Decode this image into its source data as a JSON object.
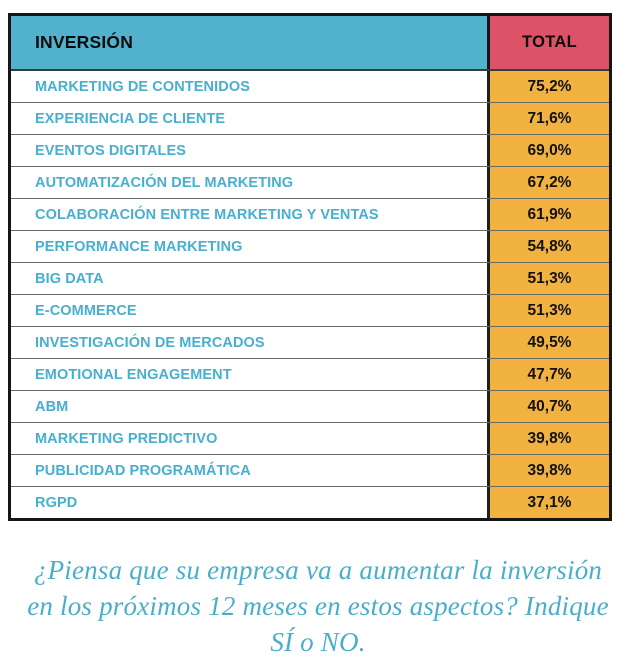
{
  "table": {
    "header": {
      "label_col": "INVERSIÓN",
      "value_col": "TOTAL"
    },
    "rows": [
      {
        "label": "MARKETING DE CONTENIDOS",
        "value": "75,2%"
      },
      {
        "label": "EXPERIENCIA DE CLIENTE",
        "value": "71,6%"
      },
      {
        "label": "EVENTOS DIGITALES",
        "value": "69,0%"
      },
      {
        "label": "AUTOMATIZACIÓN DEL MARKETING",
        "value": "67,2%"
      },
      {
        "label": "COLABORACIÓN ENTRE MARKETING Y VENTAS",
        "value": "61,9%"
      },
      {
        "label": "PERFORMANCE MARKETING",
        "value": "54,8%"
      },
      {
        "label": "BIG DATA",
        "value": "51,3%"
      },
      {
        "label": "E-COMMERCE",
        "value": "51,3%"
      },
      {
        "label": "INVESTIGACIÓN DE MERCADOS",
        "value": "49,5%"
      },
      {
        "label": "EMOTIONAL ENGAGEMENT",
        "value": "47,7%"
      },
      {
        "label": "ABM",
        "value": "40,7%"
      },
      {
        "label": "MARKETING PREDICTIVO",
        "value": "39,8%"
      },
      {
        "label": "PUBLICIDAD PROGRAMÁTICA",
        "value": "39,8%"
      },
      {
        "label": "RGPD",
        "value": "37,1%"
      }
    ]
  },
  "caption": {
    "line1": "¿Piensa que su empresa va a aumentar la inversión",
    "line2": "en los próximos 12 meses en estos aspectos? Indique",
    "line3": "SÍ o NO."
  },
  "colors": {
    "header_label_bg": "#52B2CD",
    "header_total_bg": "#DC5266",
    "value_cell_bg": "#F2B240",
    "row_label_text": "#47AFCF",
    "caption_text": "#4AAECB",
    "border": "#161616"
  },
  "chart_data": {
    "type": "table",
    "title": "INVERSIÓN",
    "columns": [
      "INVERSIÓN",
      "TOTAL"
    ],
    "categories": [
      "MARKETING DE CONTENIDOS",
      "EXPERIENCIA DE CLIENTE",
      "EVENTOS DIGITALES",
      "AUTOMATIZACIÓN DEL MARKETING",
      "COLABORACIÓN ENTRE MARKETING Y VENTAS",
      "PERFORMANCE MARKETING",
      "BIG DATA",
      "E-COMMERCE",
      "INVESTIGACIÓN DE MERCADOS",
      "EMOTIONAL ENGAGEMENT",
      "ABM",
      "MARKETING PREDICTIVO",
      "PUBLICIDAD PROGRAMÁTICA",
      "RGPD"
    ],
    "values": [
      75.2,
      71.6,
      69.0,
      67.2,
      61.9,
      54.8,
      51.3,
      51.3,
      49.5,
      47.7,
      40.7,
      39.8,
      39.8,
      37.1
    ],
    "value_unit": "%",
    "value_format": "comma-decimal percent",
    "note": "¿Piensa que su empresa va a aumentar la inversión en los próximos 12 meses en estos aspectos? Indique SÍ o NO."
  }
}
